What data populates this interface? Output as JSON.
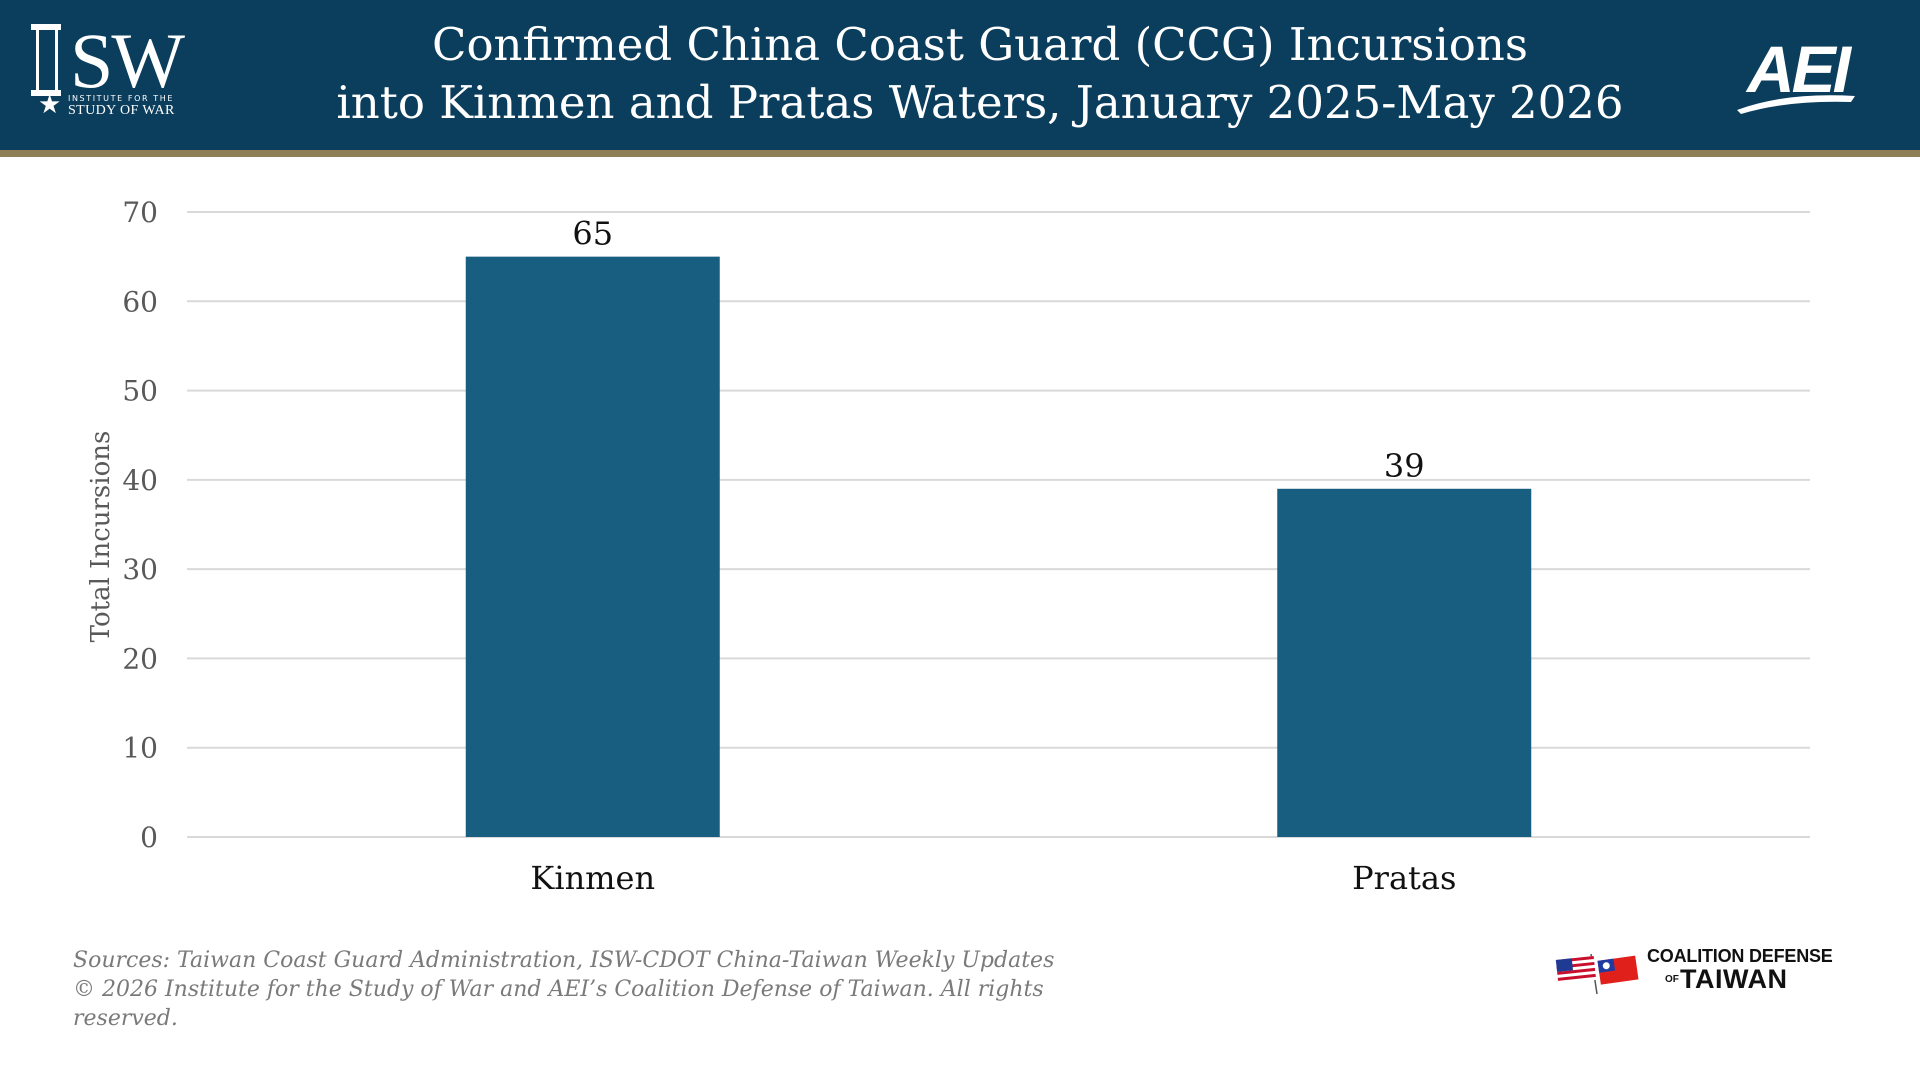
{
  "header": {
    "title_line1": "Confirmed China Coast Guard (CCG) Incursions",
    "title_line2": "into Kinmen and Pratas Waters, January 2025-May 2026",
    "background_color": "#0b3d5c",
    "rule_color": "#8f7f57"
  },
  "logos": {
    "isw": {
      "mark": "SW",
      "line1": "INSTITUTE FOR THE",
      "line2": "STUDY OF WAR",
      "star_icon": "star-icon"
    },
    "aei": {
      "mark": "AEI"
    },
    "coalition": {
      "line1": "COALITION DEFENSE",
      "of": "OF",
      "line2": "TAIWAN",
      "flags_icon": "us-taiwan-flags-icon"
    }
  },
  "chart_data": {
    "type": "bar",
    "categories": [
      "Kinmen",
      "Pratas"
    ],
    "values": [
      65,
      39
    ],
    "data_labels": [
      "65",
      "39"
    ],
    "ylabel": "Total Incursions",
    "xlabel": "",
    "ylim": [
      0,
      70
    ],
    "yticks": [
      0,
      10,
      20,
      30,
      40,
      50,
      60,
      70
    ],
    "grid": true,
    "legend": "none",
    "bar_color": "#175e80"
  },
  "footer": {
    "sources": "Sources: Taiwan Coast Guard Administration, ISW-CDOT China-Taiwan Weekly Updates",
    "copyright": "© 2026 Institute for the Study of War and AEI’s Coalition Defense of Taiwan. All rights reserved."
  }
}
